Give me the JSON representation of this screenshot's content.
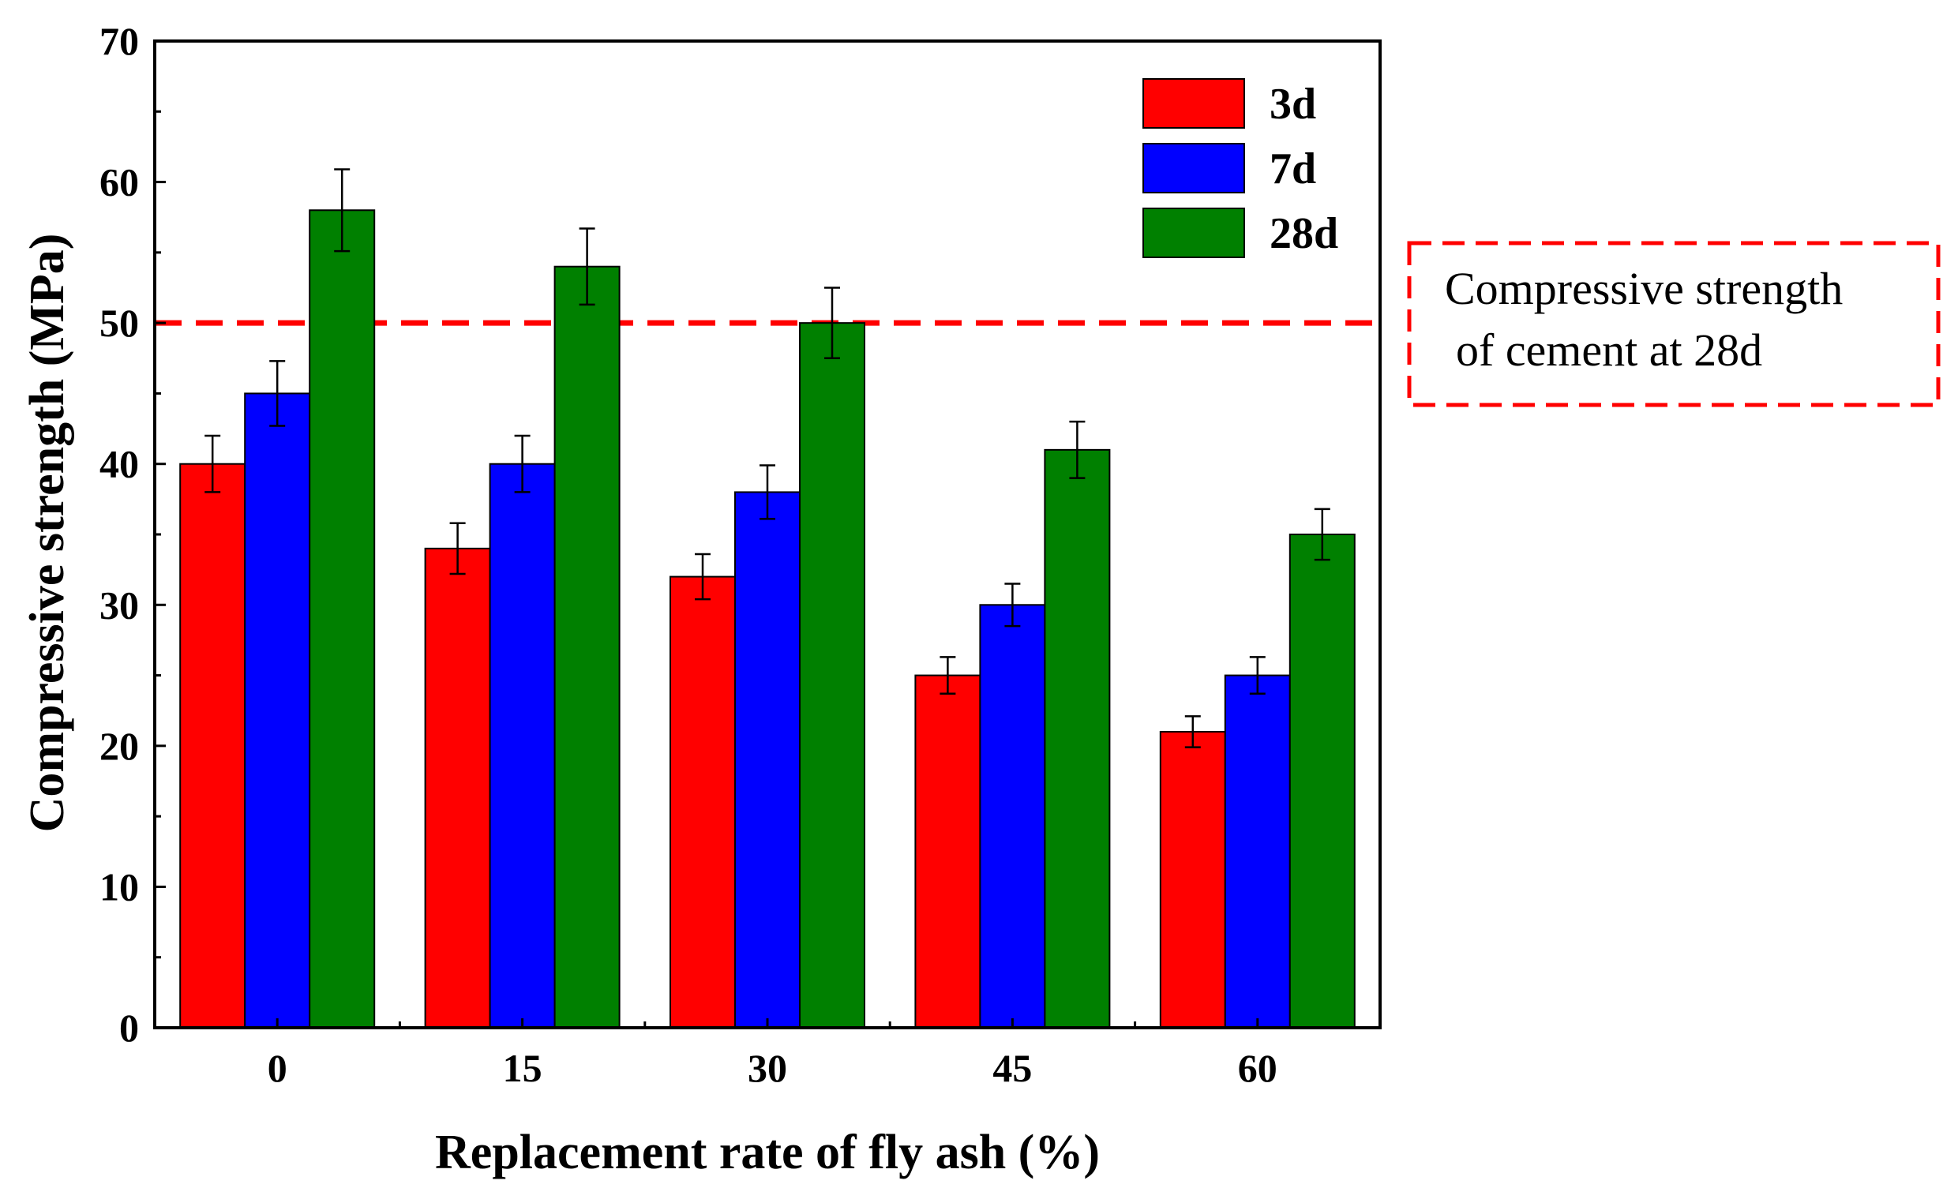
{
  "chart_data": {
    "type": "bar",
    "xlabel": "Replacement rate of fly ash (%)",
    "ylabel": "Compressive strength (MPa)",
    "categories": [
      "0",
      "15",
      "30",
      "45",
      "60"
    ],
    "ylim": [
      0,
      70
    ],
    "yticks": [
      "0",
      "10",
      "20",
      "30",
      "40",
      "50",
      "60",
      "70"
    ],
    "grid": false,
    "legend_position": "top-right",
    "series": [
      {
        "name": "3d",
        "color": "#ff0000",
        "values": [
          40,
          34,
          32,
          25,
          21
        ],
        "errors": [
          2.0,
          1.8,
          1.6,
          1.3,
          1.1
        ]
      },
      {
        "name": "7d",
        "color": "#0000ff",
        "values": [
          45,
          40,
          38,
          30,
          25
        ],
        "errors": [
          2.3,
          2.0,
          1.9,
          1.5,
          1.3
        ]
      },
      {
        "name": "28d",
        "color": "#008000",
        "values": [
          58,
          54,
          50,
          41,
          35
        ],
        "errors": [
          2.9,
          2.7,
          2.5,
          2.0,
          1.8
        ]
      }
    ],
    "reference_line": {
      "value": 50,
      "color": "#ff0000",
      "style": "dashed"
    },
    "annotation": {
      "line1": "Compressive  strength",
      "line2": "of cement  at 28d",
      "border_color": "#ff0000"
    }
  }
}
